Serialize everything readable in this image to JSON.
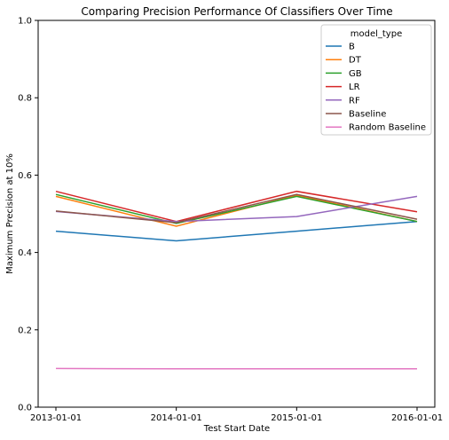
{
  "chart_data": {
    "type": "line",
    "title": "Comparing Precision Performance Of Classifiers Over Time",
    "xlabel": "Test Start Date",
    "ylabel": "Maximum Precision at 10%",
    "x": [
      "2013-01-01",
      "2014-01-01",
      "2015-01-01",
      "2016-01-01"
    ],
    "ylim": [
      0.0,
      1.0
    ],
    "yticks": [
      "0.0",
      "0.2",
      "0.4",
      "0.6",
      "0.8",
      "1.0"
    ],
    "grid": false,
    "legend_title": "model_type",
    "legend_position": "top-right",
    "series": [
      {
        "name": "B",
        "color": "#1f77b4",
        "values": [
          0.455,
          0.43,
          0.455,
          0.48
        ]
      },
      {
        "name": "DT",
        "color": "#ff7f0e",
        "values": [
          0.545,
          0.468,
          0.548,
          0.48
        ]
      },
      {
        "name": "GB",
        "color": "#2ca02c",
        "values": [
          0.55,
          0.475,
          0.545,
          0.48
        ]
      },
      {
        "name": "LR",
        "color": "#d62728",
        "values": [
          0.558,
          0.48,
          0.558,
          0.505
        ]
      },
      {
        "name": "RF",
        "color": "#9467bd",
        "values": [
          0.506,
          0.48,
          0.493,
          0.545
        ]
      },
      {
        "name": "Baseline",
        "color": "#8c564b",
        "values": [
          0.507,
          0.477,
          0.55,
          0.486
        ]
      },
      {
        "name": "Random Baseline",
        "color": "#e377c2",
        "values": [
          0.1,
          0.099,
          0.099,
          0.099
        ]
      }
    ]
  }
}
